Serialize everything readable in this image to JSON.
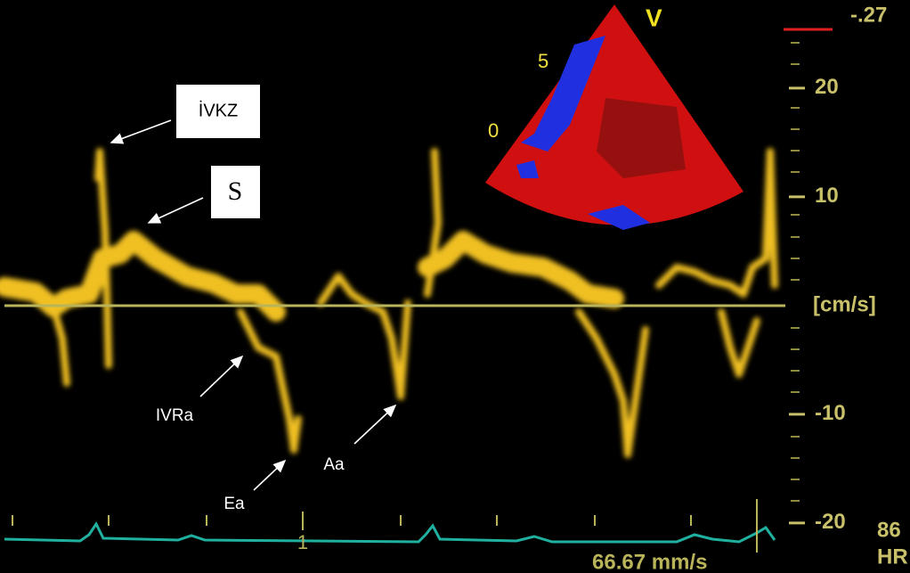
{
  "top_right_value": "-.27",
  "sector": {
    "view": "V",
    "depth_marks": [
      "5",
      "0"
    ]
  },
  "velocity_axis": {
    "unit": "[cm/s]",
    "ylim": [
      -24.6,
      28.1
    ],
    "yticks": [
      20,
      10,
      -10,
      -20
    ]
  },
  "annotations": {
    "ivcz": "İVKZ",
    "s": "S",
    "ivra": "IVRa",
    "ea": "Ea",
    "aa": "Aa"
  },
  "ecg": {
    "marker": "1",
    "sweep_speed": "66.67 mm/s",
    "hr_value": "86",
    "hr_label": "HR"
  }
}
